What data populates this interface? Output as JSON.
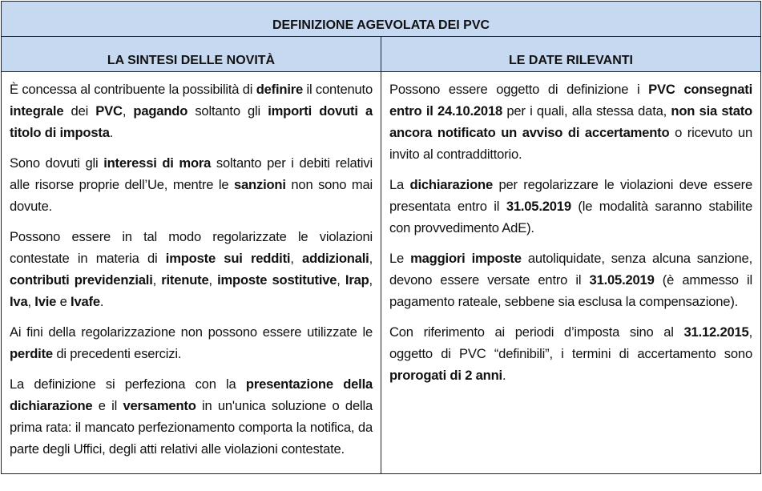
{
  "title": "DEFINIZIONE AGEVOLATA DEI PVC",
  "columns": [
    {
      "header": "LA SINTESI DELLE NOVITÀ",
      "paragraphs": [
        [
          {
            "t": "È concessa al contribuente la possibilità di "
          },
          {
            "t": "definire",
            "b": true
          },
          {
            "t": " il contenuto "
          },
          {
            "t": "integrale",
            "b": true
          },
          {
            "t": " dei "
          },
          {
            "t": "PVC",
            "b": true
          },
          {
            "t": ", "
          },
          {
            "t": "pagando",
            "b": true
          },
          {
            "t": " soltanto gli "
          },
          {
            "t": "importi dovuti a titolo di imposta",
            "b": true
          },
          {
            "t": "."
          }
        ],
        [
          {
            "t": "Sono dovuti gli "
          },
          {
            "t": "interessi di mora",
            "b": true
          },
          {
            "t": " soltanto per i debiti relativi alle risorse proprie dell’Ue, mentre le "
          },
          {
            "t": "sanzioni",
            "b": true
          },
          {
            "t": " non sono mai dovute."
          }
        ],
        [
          {
            "t": "Possono essere in tal modo regolarizzate le violazioni contestate in materia di "
          },
          {
            "t": "imposte sui redditi",
            "b": true
          },
          {
            "t": ", "
          },
          {
            "t": "addizionali",
            "b": true
          },
          {
            "t": ", "
          },
          {
            "t": "contributi previdenziali",
            "b": true
          },
          {
            "t": ", "
          },
          {
            "t": "ritenute",
            "b": true
          },
          {
            "t": ", "
          },
          {
            "t": "imposte sostitutive",
            "b": true
          },
          {
            "t": ", "
          },
          {
            "t": "Irap",
            "b": true
          },
          {
            "t": ", "
          },
          {
            "t": "Iva",
            "b": true
          },
          {
            "t": ", "
          },
          {
            "t": "Ivie",
            "b": true
          },
          {
            "t": " e "
          },
          {
            "t": "Ivafe",
            "b": true
          },
          {
            "t": "."
          }
        ],
        [
          {
            "t": "Ai fini della regolarizzazione non possono essere utilizzate le "
          },
          {
            "t": "perdite",
            "b": true
          },
          {
            "t": " di precedenti esercizi."
          }
        ],
        [
          {
            "t": "La definizione si perfeziona con la "
          },
          {
            "t": "presentazione della dichiarazione",
            "b": true
          },
          {
            "t": " e il "
          },
          {
            "t": "versamento",
            "b": true
          },
          {
            "t": " in un'unica soluzione o della prima rata: il mancato perfezionamento comporta la notifica, da parte degli Uffici, degli atti relativi alle violazioni contestate."
          }
        ]
      ]
    },
    {
      "header": "LE DATE RILEVANTI",
      "paragraphs": [
        [
          {
            "t": "Possono essere oggetto di definizione i "
          },
          {
            "t": "PVC consegnati entro il 24.10.2018",
            "b": true
          },
          {
            "t": " per i quali, alla stessa data, "
          },
          {
            "t": "non sia stato ancora notificato un avviso di accertamento",
            "b": true
          },
          {
            "t": " o ricevuto un invito al contraddittorio."
          }
        ],
        [
          {
            "t": "La "
          },
          {
            "t": "dichiarazione",
            "b": true
          },
          {
            "t": " per regolarizzare le violazioni deve essere presentata entro il "
          },
          {
            "t": "31.05.2019",
            "b": true
          },
          {
            "t": " (le modalità saranno stabilite con provvedimento AdE)."
          }
        ],
        [
          {
            "t": "Le "
          },
          {
            "t": "maggiori imposte",
            "b": true
          },
          {
            "t": " autoliquidate, senza alcuna sanzione, devono essere versate entro il "
          },
          {
            "t": "31.05.2019",
            "b": true
          },
          {
            "t": " (è ammesso il pagamento rateale, sebbene sia esclusa la compensazione)."
          }
        ],
        [
          {
            "t": "Con riferimento ai periodi d’imposta sino al "
          },
          {
            "t": "31.12.2015",
            "b": true
          },
          {
            "t": ", oggetto di PVC “definibili”, i termini di accertamento sono "
          },
          {
            "t": "prorogati di 2 anni",
            "b": true
          },
          {
            "t": "."
          }
        ]
      ]
    }
  ],
  "colors": {
    "header_bg": "#c6d9f1",
    "border": "#222222"
  }
}
